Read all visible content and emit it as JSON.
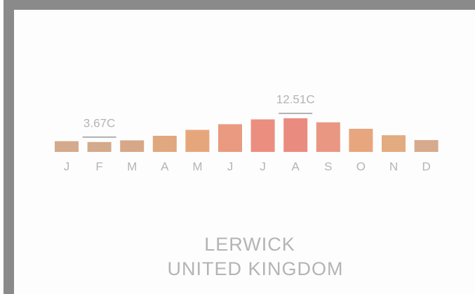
{
  "chart_data": {
    "type": "bar",
    "title": "LERWICK",
    "subtitle": "UNITED KINGDOM",
    "categories": [
      "J",
      "F",
      "M",
      "A",
      "M",
      "J",
      "J",
      "A",
      "S",
      "O",
      "N",
      "D"
    ],
    "values": [
      4.0,
      3.67,
      4.3,
      6.0,
      8.2,
      10.3,
      12.1,
      12.51,
      11.0,
      8.6,
      6.2,
      4.4
    ],
    "value_labels": [
      null,
      "3.67C",
      null,
      null,
      null,
      null,
      null,
      "12.51C",
      null,
      null,
      null,
      null
    ],
    "colors": [
      "#d4aa8c",
      "#d4aa8c",
      "#d6a888",
      "#e0a87e",
      "#e6a67c",
      "#e99a80",
      "#eb8e80",
      "#ea8b80",
      "#e99782",
      "#e8a67e",
      "#e2ab80",
      "#d6aa8c"
    ]
  }
}
